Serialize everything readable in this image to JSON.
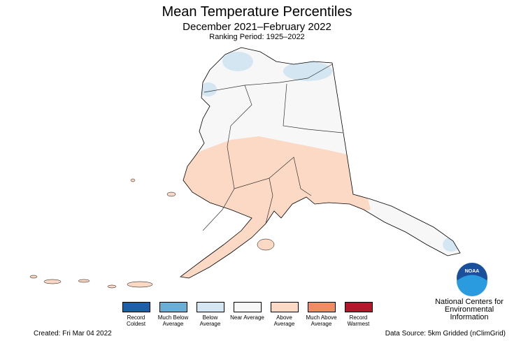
{
  "header": {
    "title": "Mean Temperature Percentiles",
    "subtitle": "December 2021–February 2022",
    "ranking_period": "Ranking Period: 1925–2022"
  },
  "legend": [
    {
      "label": "Record Coldest",
      "color": "#1f5fa8"
    },
    {
      "label": "Much Below Average",
      "color": "#6aaed6"
    },
    {
      "label": "Below Average",
      "color": "#d3e6f1"
    },
    {
      "label": "Near Average",
      "color": "#f7f7f7"
    },
    {
      "label": "Above Average",
      "color": "#fcd9c4"
    },
    {
      "label": "Much Above Average",
      "color": "#f08c63"
    },
    {
      "label": "Record Warmest",
      "color": "#b2182b"
    }
  ],
  "logo": {
    "mark": "NOAA",
    "lines": [
      "National Centers for",
      "Environmental",
      "Information"
    ]
  },
  "footer": {
    "created": "Created: Fri Mar 04 2022",
    "source": "Data Source: 5km Gridded (nClimGrid)"
  }
}
